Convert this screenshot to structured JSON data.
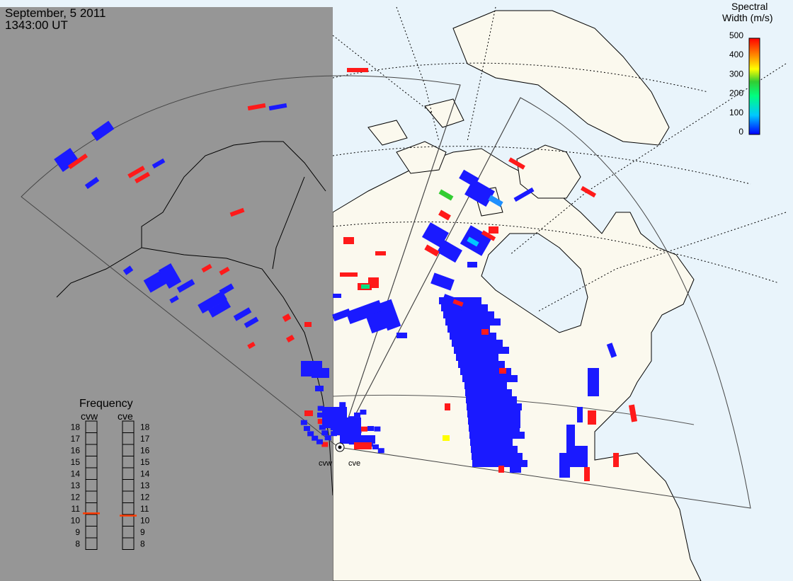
{
  "header": {
    "date": "September, 5 2011",
    "time": "1343:00 UT"
  },
  "colorbar": {
    "title_line1": "Spectral",
    "title_line2": "Width (m/s)",
    "ticks": [
      "500",
      "400",
      "300",
      "200",
      "100",
      "0"
    ],
    "colors": [
      "#0000ff",
      "#00c8ff",
      "#00ff80",
      "#32cd32",
      "#ffff00",
      "#ff8c00",
      "#ff0000"
    ]
  },
  "frequency_panel": {
    "title": "Frequency",
    "radars": [
      {
        "name": "cvw",
        "value": 10.6
      },
      {
        "name": "cve",
        "value": 10.4
      }
    ],
    "scale": [
      "18",
      "17",
      "16",
      "15",
      "14",
      "13",
      "12",
      "11",
      "10",
      "9",
      "8"
    ]
  },
  "stations": {
    "west": "cvw",
    "east": "cve"
  },
  "colors": {
    "night": "#969696",
    "land": "#fbf9ee",
    "ocean": "#e9f4fb",
    "low_width": "#1a1aff",
    "high_width": "#ff1a1a"
  }
}
